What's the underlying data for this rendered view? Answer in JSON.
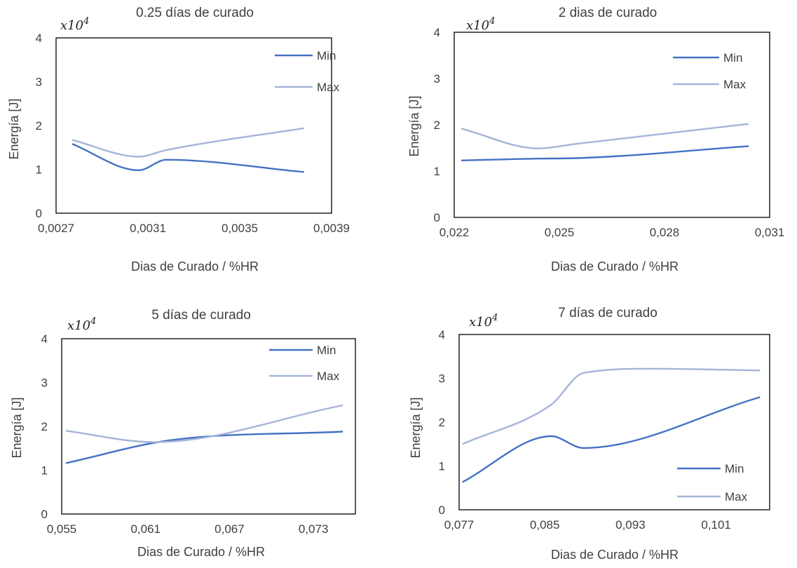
{
  "chart_data": [
    {
      "type": "line",
      "title": "0.25 días de curado",
      "xlabel": "Dias de Curado / %HR",
      "ylabel": "Energía [J]",
      "multiplier": "x10",
      "multiplier_exp": "4",
      "xlim": [
        0.0027,
        0.0039
      ],
      "ylim": [
        0,
        4
      ],
      "xticks": [
        0.0027,
        0.0031,
        0.0035,
        0.0039
      ],
      "xtick_labels": [
        "0,0027",
        "0,0031",
        "0,0035",
        "0,0039"
      ],
      "yticks": [
        0,
        1,
        2,
        3,
        4
      ],
      "ytick_labels": [
        "0",
        "1",
        "2",
        "3",
        "4"
      ],
      "legend_position": "top-right",
      "series": [
        {
          "name": "Min",
          "color": "#4472C4",
          "x": [
            0.00277,
            0.00306,
            0.00318,
            0.00378
          ],
          "y": [
            1.58,
            0.98,
            1.22,
            0.94
          ]
        },
        {
          "name": "Max",
          "color": "#A5B4D9",
          "x": [
            0.00277,
            0.00306,
            0.00318,
            0.00378
          ],
          "y": [
            1.67,
            1.29,
            1.44,
            1.94
          ]
        }
      ]
    },
    {
      "type": "line",
      "title": "2 dias de curado",
      "xlabel": "Dias de Curado / %HR",
      "ylabel": "Energía [J]",
      "multiplier": "x10",
      "multiplier_exp": "4",
      "xlim": [
        0.022,
        0.031
      ],
      "ylim": [
        0,
        4
      ],
      "xticks": [
        0.022,
        0.025,
        0.028,
        0.031
      ],
      "xtick_labels": [
        "0,022",
        "0,025",
        "0,028",
        "0,031"
      ],
      "yticks": [
        0,
        1,
        2,
        3,
        4
      ],
      "ytick_labels": [
        "0",
        "1",
        "2",
        "3",
        "4"
      ],
      "legend_position": "top-right",
      "series": [
        {
          "name": "Min",
          "color": "#4472C4",
          "x": [
            0.0222,
            0.0244,
            0.0255,
            0.0304
          ],
          "y": [
            1.23,
            1.27,
            1.28,
            1.54
          ]
        },
        {
          "name": "Max",
          "color": "#A5B4D9",
          "x": [
            0.0222,
            0.0244,
            0.0255,
            0.0304
          ],
          "y": [
            1.92,
            1.49,
            1.59,
            2.02
          ]
        }
      ]
    },
    {
      "type": "line",
      "title": "5 días de curado",
      "xlabel": "Dias de Curado / %HR",
      "ylabel": "Energía [J]",
      "multiplier": "x10",
      "multiplier_exp": "4",
      "xlim": [
        0.055,
        0.076
      ],
      "ylim": [
        0,
        4
      ],
      "xticks": [
        0.055,
        0.061,
        0.067,
        0.073
      ],
      "xtick_labels": [
        "0,055",
        "0,061",
        "0,067",
        "0,073"
      ],
      "yticks": [
        0,
        1,
        2,
        3,
        4
      ],
      "ytick_labels": [
        "0",
        "1",
        "2",
        "3",
        "4"
      ],
      "legend_position": "top-right",
      "series": [
        {
          "name": "Min",
          "color": "#4472C4",
          "x": [
            0.0553,
            0.0627,
            0.0751
          ],
          "y": [
            1.16,
            1.68,
            1.88
          ]
        },
        {
          "name": "Max",
          "color": "#A5B4D9",
          "x": [
            0.0553,
            0.0616,
            0.0751
          ],
          "y": [
            1.9,
            1.64,
            2.48
          ]
        }
      ]
    },
    {
      "type": "line",
      "title": "7 días de curado",
      "xlabel": "Dias de Curado / %HR",
      "ylabel": "Energía [J]",
      "multiplier": "x10",
      "multiplier_exp": "4",
      "xlim": [
        0.077,
        0.106
      ],
      "ylim": [
        0,
        4
      ],
      "xticks": [
        0.077,
        0.085,
        0.093,
        0.101
      ],
      "xtick_labels": [
        "0,077",
        "0,085",
        "0,093",
        "0,101"
      ],
      "yticks": [
        0,
        1,
        2,
        3,
        4
      ],
      "ytick_labels": [
        "0",
        "1",
        "2",
        "3",
        "4"
      ],
      "legend_position": "bottom-right",
      "series": [
        {
          "name": "Min",
          "color": "#4472C4",
          "x": [
            0.0773,
            0.0856,
            0.0886,
            0.1051
          ],
          "y": [
            0.63,
            1.68,
            1.41,
            2.57
          ]
        },
        {
          "name": "Max",
          "color": "#A5B4D9",
          "x": [
            0.0773,
            0.0856,
            0.0886,
            0.0949,
            0.1051
          ],
          "y": [
            1.5,
            2.4,
            3.12,
            3.22,
            3.18
          ]
        }
      ]
    }
  ]
}
